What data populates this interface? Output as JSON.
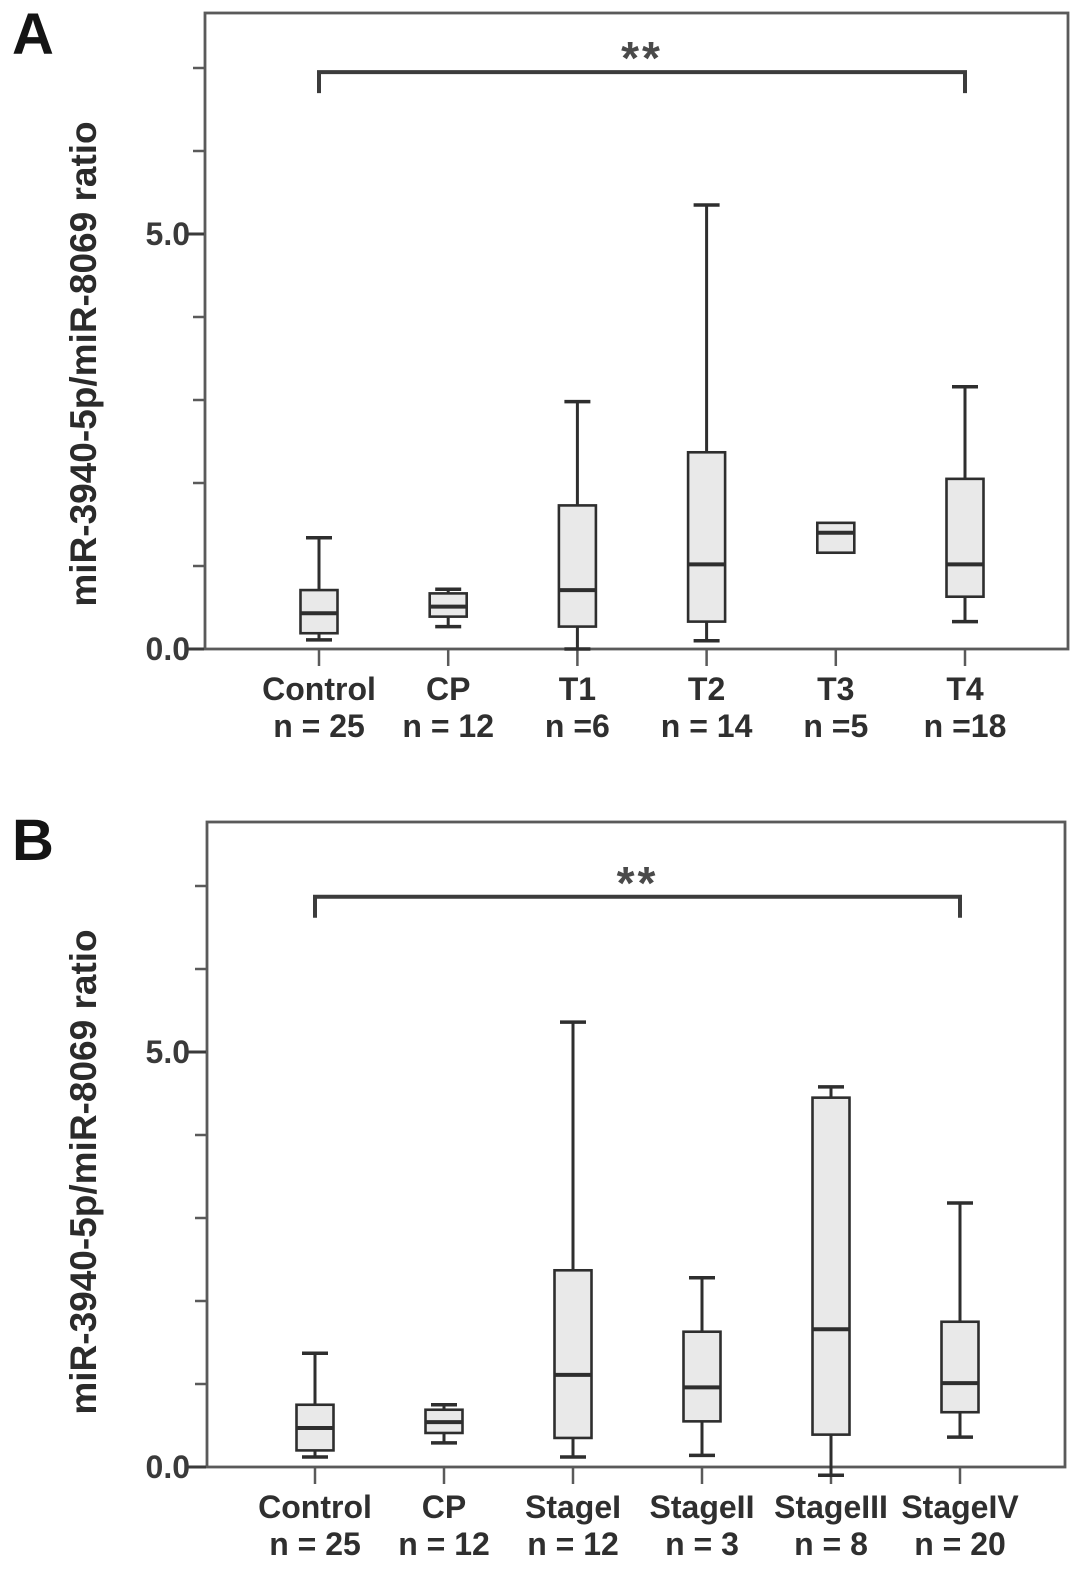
{
  "figure": {
    "background": "#ffffff",
    "box_fill": "#e9e9e9",
    "box_stroke": "#2e2e2e",
    "axis_color": "#5a5a5a",
    "bracket_color": "#3c3c3c",
    "star_color": "#4a4a4a"
  },
  "chart_data": [
    {
      "type": "boxplot",
      "panel_label": "A",
      "title": "",
      "xlabel": "",
      "ylabel": "miR-3940-5p/miR-8069 ratio",
      "ylim": [
        0,
        7.66
      ],
      "grid": false,
      "yticks": [
        {
          "value": 0.0,
          "label": "0.0"
        },
        {
          "value": 5.0,
          "label": "5.0"
        }
      ],
      "yticks_minor": [
        1,
        2,
        3,
        4,
        6,
        7
      ],
      "categories": [
        "Control",
        "CP",
        "T1",
        "T2",
        "T3",
        "T4"
      ],
      "n_labels": [
        "n = 25",
        "n = 12",
        "n =6",
        "n = 14",
        "n =5",
        "n =18"
      ],
      "series": [
        {
          "category": "Control",
          "n": 25,
          "whisker_low": 0.11,
          "q1": 0.19,
          "median": 0.43,
          "q3": 0.71,
          "whisker_high": 1.34
        },
        {
          "category": "CP",
          "n": 12,
          "whisker_low": 0.27,
          "q1": 0.39,
          "median": 0.51,
          "q3": 0.67,
          "whisker_high": 0.72
        },
        {
          "category": "T1",
          "n": 6,
          "whisker_low": 0.0,
          "q1": 0.27,
          "median": 0.71,
          "q3": 1.73,
          "whisker_high": 2.98
        },
        {
          "category": "T2",
          "n": 14,
          "whisker_low": 0.1,
          "q1": 0.33,
          "median": 1.02,
          "q3": 2.37,
          "whisker_high": 5.35
        },
        {
          "category": "T3",
          "n": 5,
          "whisker_low": null,
          "q1": 1.16,
          "median": 1.4,
          "q3": 1.52,
          "whisker_high": null
        },
        {
          "category": "T4",
          "n": 18,
          "whisker_low": 0.33,
          "q1": 0.63,
          "median": 1.02,
          "q3": 2.05,
          "whisker_high": 3.16
        }
      ],
      "significance": {
        "text": "**",
        "from_category": "Control",
        "to_category": "T4",
        "y": 6.95
      }
    },
    {
      "type": "boxplot",
      "panel_label": "B",
      "title": "",
      "xlabel": "",
      "ylabel": "miR-3940-5p/miR-8069 ratio",
      "ylim": [
        0,
        7.77
      ],
      "grid": false,
      "yticks": [
        {
          "value": 0.0,
          "label": "0.0"
        },
        {
          "value": 5.0,
          "label": "5.0"
        }
      ],
      "yticks_minor": [
        1,
        2,
        3,
        4,
        6,
        7
      ],
      "categories": [
        "Control",
        "CP",
        "StageI",
        "StageII",
        "StageIII",
        "StageIV"
      ],
      "n_labels": [
        "n = 25",
        "n = 12",
        "n = 12",
        "n = 3",
        "n = 8",
        "n = 20"
      ],
      "series": [
        {
          "category": "Control",
          "n": 25,
          "whisker_low": 0.12,
          "q1": 0.2,
          "median": 0.47,
          "q3": 0.75,
          "whisker_high": 1.37
        },
        {
          "category": "CP",
          "n": 12,
          "whisker_low": 0.29,
          "q1": 0.41,
          "median": 0.54,
          "q3": 0.69,
          "whisker_high": 0.75
        },
        {
          "category": "StageI",
          "n": 12,
          "whisker_low": 0.12,
          "q1": 0.35,
          "median": 1.11,
          "q3": 2.37,
          "whisker_high": 5.36
        },
        {
          "category": "StageII",
          "n": 3,
          "whisker_low": 0.14,
          "q1": 0.55,
          "median": 0.96,
          "q3": 1.63,
          "whisker_high": 2.28
        },
        {
          "category": "StageIII",
          "n": 8,
          "whisker_low": -0.1,
          "q1": 0.39,
          "median": 1.66,
          "q3": 4.45,
          "whisker_high": 4.58
        },
        {
          "category": "StageIV",
          "n": 20,
          "whisker_low": 0.36,
          "q1": 0.66,
          "median": 1.01,
          "q3": 1.75,
          "whisker_high": 3.18
        }
      ],
      "significance": {
        "text": "**",
        "from_category": "Control",
        "to_category": "StageIV",
        "y": 6.87
      }
    }
  ]
}
